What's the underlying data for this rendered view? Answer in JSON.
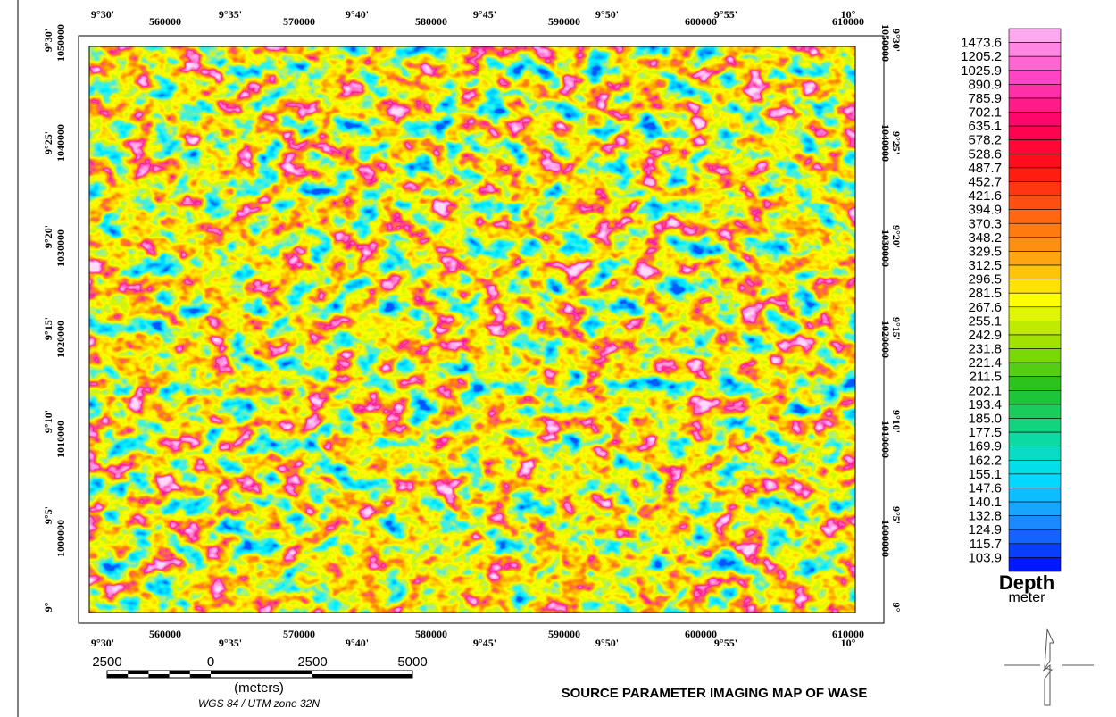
{
  "title": "SOURCE PARAMETER IMAGING MAP OF WASE",
  "frame": {
    "longitudes": [
      "9°30'",
      "9°35'",
      "9°40'",
      "9°45'",
      "9°50'",
      "9°55'",
      "10°"
    ],
    "eastings": [
      "560000",
      "570000",
      "580000",
      "590000",
      "600000",
      "610000"
    ],
    "latitudes": [
      "9°30'",
      "9°25'",
      "9°20'",
      "9°15'",
      "9°10'",
      "9°5'",
      "9°"
    ],
    "northings": [
      "1050000",
      "1040000",
      "1030000",
      "1020000",
      "1010000",
      "1000000"
    ]
  },
  "legend": {
    "title": "Depth",
    "unit": "meter",
    "labels": [
      "1473.6",
      "1205.2",
      "1025.9",
      "890.9",
      "785.9",
      "702.1",
      "635.1",
      "578.2",
      "528.6",
      "487.7",
      "452.7",
      "421.6",
      "394.9",
      "370.3",
      "348.2",
      "329.5",
      "312.5",
      "296.5",
      "281.5",
      "267.6",
      "255.1",
      "242.9",
      "231.8",
      "221.4",
      "211.5",
      "202.1",
      "193.4",
      "185.0",
      "177.5",
      "169.9",
      "162.2",
      "155.1",
      "147.6",
      "140.1",
      "132.8",
      "124.9",
      "115.7",
      "103.9"
    ],
    "colors": [
      "#0018ff",
      "#1e90ff",
      "#00e0ff",
      "#10d890",
      "#20c020",
      "#9ce000",
      "#ffff00",
      "#ffa010",
      "#ff6010",
      "#ff1010",
      "#ff0060",
      "#ff40c0",
      "#ffa8f0"
    ]
  },
  "scale_bar": {
    "labels": [
      "2500",
      "0",
      "2500",
      "5000"
    ],
    "unit": "(meters)",
    "projection": "WGS 84 / UTM zone 32N"
  }
}
